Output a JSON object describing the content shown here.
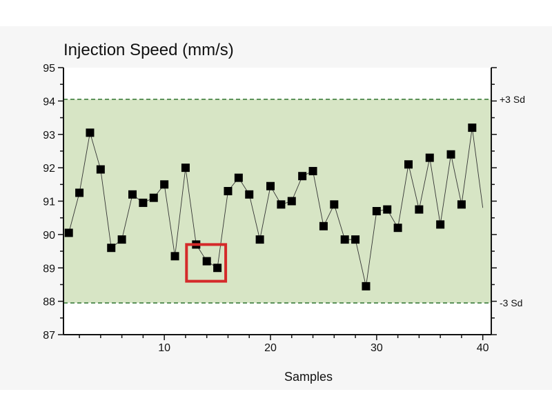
{
  "chart_data": {
    "type": "line",
    "title": "Injection Speed (mm/s)",
    "xlabel": "Samples",
    "ylabel": "",
    "xlim": [
      0.5,
      40.8
    ],
    "ylim": [
      87,
      95
    ],
    "xticks": [
      10,
      20,
      30,
      40
    ],
    "yticks": [
      87,
      88,
      89,
      90,
      91,
      92,
      93,
      94,
      95
    ],
    "grid": false,
    "control_limits": [
      {
        "label": "+3 Sd",
        "value": 94.05
      },
      {
        "label": "-3 Sd",
        "value": 87.95
      }
    ],
    "highlight": {
      "x_range": [
        13,
        15
      ],
      "y_range": [
        88.6,
        89.7
      ]
    },
    "colors": {
      "band": "#d7e5c5",
      "limit_line": "#3c7d3c",
      "marker": "#000000",
      "highlight": "#d42a2a"
    },
    "series": [
      {
        "name": "Injection Speed",
        "x": [
          1,
          2,
          3,
          4,
          5,
          6,
          7,
          8,
          9,
          10,
          11,
          12,
          13,
          14,
          15,
          16,
          17,
          18,
          19,
          20,
          21,
          22,
          23,
          24,
          25,
          26,
          27,
          28,
          29,
          30,
          31,
          32,
          33,
          34,
          35,
          36,
          37,
          38,
          39,
          40
        ],
        "values": [
          90.05,
          91.25,
          93.05,
          91.95,
          89.6,
          89.85,
          91.2,
          90.95,
          91.1,
          91.5,
          89.35,
          92.0,
          89.7,
          89.2,
          89.0,
          91.3,
          91.7,
          91.2,
          89.85,
          91.45,
          90.9,
          91.0,
          91.75,
          91.9,
          90.25,
          90.9,
          89.85,
          89.85,
          88.45,
          90.7,
          90.75,
          90.2,
          92.1,
          90.75,
          92.3,
          90.3,
          92.4,
          90.9,
          93.2,
          90.8
        ]
      }
    ]
  }
}
